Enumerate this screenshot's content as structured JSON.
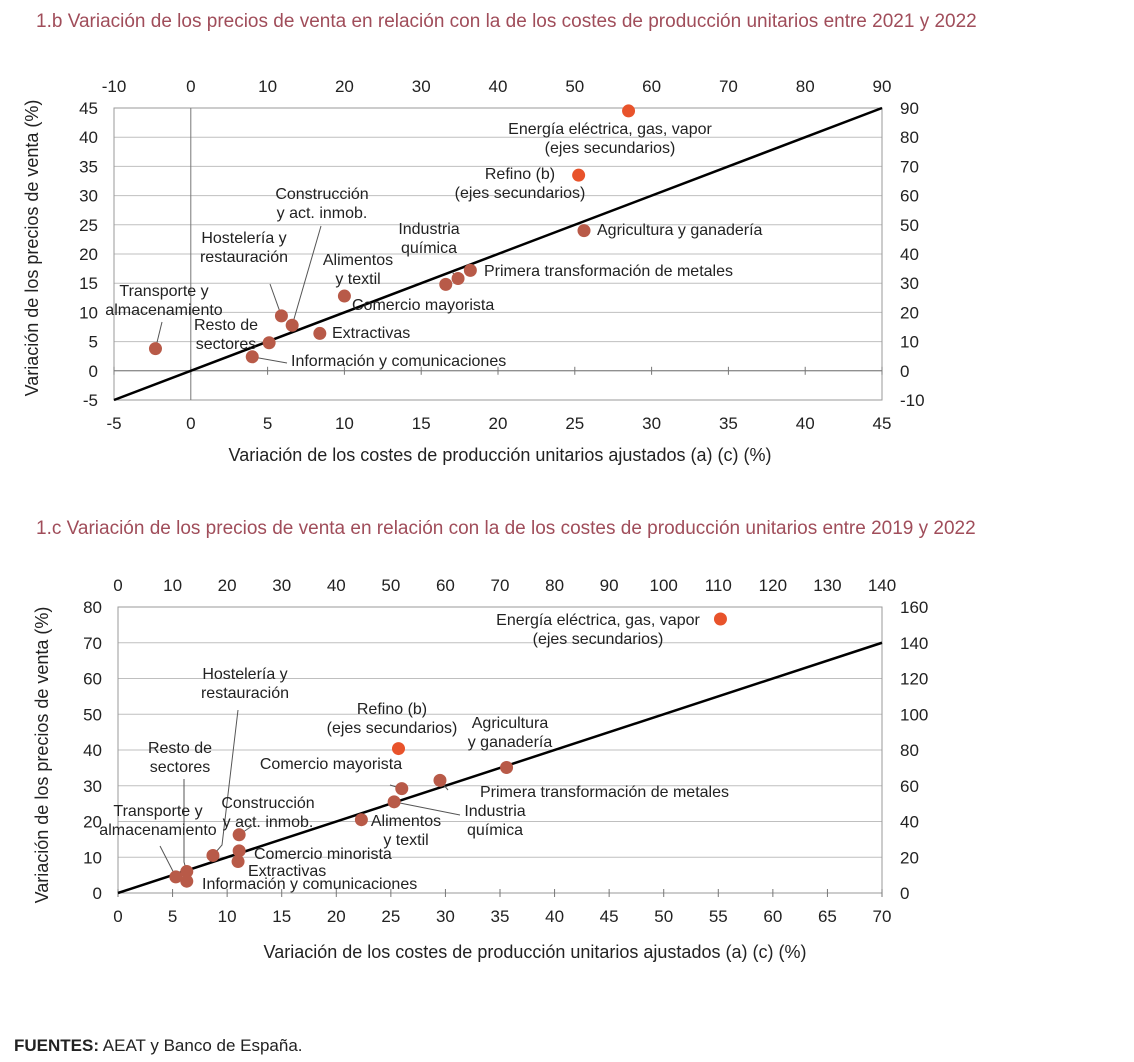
{
  "colors": {
    "title": "#a04d5a",
    "dot": "#b85a48",
    "dot_secondary": "#e8532b",
    "line": "#000000",
    "grid": "#bfbfbf"
  },
  "sources": {
    "label": "FUENTES:",
    "text": "AEAT y Banco de España."
  },
  "chart_data": [
    {
      "id": "1b",
      "type": "scatter",
      "title": "1.b  Variación de los precios de venta en relación con la de los costes de producción unitarios entre 2021 y 2022",
      "xlabel": "Variación de los costes de producción unitarios ajustados (a) (c) (%)",
      "ylabel": "Variación de los precios de venta (%)",
      "xlim": [
        -5,
        45
      ],
      "ylim": [
        -5,
        45
      ],
      "x2lim": [
        -10,
        90
      ],
      "y2lim": [
        -10,
        90
      ],
      "xticks": [
        -5,
        0,
        5,
        10,
        15,
        20,
        25,
        30,
        35,
        40,
        45
      ],
      "yticks": [
        -5,
        0,
        5,
        10,
        15,
        20,
        25,
        30,
        35,
        40,
        45
      ],
      "x2ticks": [
        -10,
        0,
        10,
        20,
        30,
        40,
        50,
        60,
        70,
        80,
        90
      ],
      "y2ticks": [
        -10,
        0,
        10,
        20,
        30,
        40,
        50,
        60,
        70,
        80,
        90
      ],
      "diagonal": true,
      "points": [
        {
          "label": "Energía eléctrica, gas, vapor\n(ejes secundarios)",
          "x": 57,
          "y": 89,
          "secondary": true
        },
        {
          "label": "Refino (b)\n(ejes secundarios)",
          "x": 50.5,
          "y": 67,
          "secondary": true
        },
        {
          "label": "Agricultura  y ganadería",
          "x": 25.6,
          "y": 24
        },
        {
          "label": "Primera transformación de metales",
          "x": 18.2,
          "y": 17.2
        },
        {
          "label": "Industria\nquímica",
          "x": 17.4,
          "y": 15.8
        },
        {
          "label": "Alimentos\ny textil",
          "x": 16.6,
          "y": 14.8
        },
        {
          "label": "Comercio mayorista",
          "x": 10,
          "y": 12.8
        },
        {
          "label": "Construcción\ny act. inmob.",
          "x": 6.6,
          "y": 7.8
        },
        {
          "label": "Hostelería y\nrestauración",
          "x": 5.9,
          "y": 9.4
        },
        {
          "label": "Extractivas",
          "x": 8.4,
          "y": 6.4
        },
        {
          "label": "Resto de\nsectores",
          "x": 5.1,
          "y": 4.8
        },
        {
          "label": "Información y comunicaciones",
          "x": 4.0,
          "y": 2.4
        },
        {
          "label": "Transporte y\nalmacenamiento",
          "x": -2.3,
          "y": 3.8
        }
      ]
    },
    {
      "id": "1c",
      "type": "scatter",
      "title": "1.c  Variación de los precios de venta en relación con la de los costes de producción unitarios entre 2019 y 2022",
      "xlabel": "Variación de los costes de producción unitarios ajustados (a) (c) (%)",
      "ylabel": "Variación de los precios de venta (%)",
      "xlim": [
        0,
        70
      ],
      "ylim": [
        0,
        80
      ],
      "x2lim": [
        0,
        140
      ],
      "y2lim": [
        0,
        160
      ],
      "xticks": [
        0,
        5,
        10,
        15,
        20,
        25,
        30,
        35,
        40,
        45,
        50,
        55,
        60,
        65,
        70
      ],
      "yticks": [
        0,
        10,
        20,
        30,
        40,
        50,
        60,
        70,
        80
      ],
      "x2ticks": [
        0,
        10,
        20,
        30,
        40,
        50,
        60,
        70,
        80,
        90,
        100,
        110,
        120,
        130,
        140
      ],
      "y2ticks": [
        0,
        20,
        40,
        60,
        80,
        100,
        120,
        140,
        160
      ],
      "diagonal": true,
      "points": [
        {
          "label": "Energía eléctrica, gas, vapor\n(ejes secundarios)",
          "x": 110.4,
          "y": 153.3,
          "secondary": true
        },
        {
          "label": "Refino (b)\n(ejes secundarios)",
          "x": 51.4,
          "y": 80.8,
          "secondary": true
        },
        {
          "label": "Agricultura\ny ganadería",
          "x": 35.6,
          "y": 35.1
        },
        {
          "label": "Primera transformación de metales",
          "x": 29.5,
          "y": 31.5
        },
        {
          "label": "Comercio mayorista",
          "x": 26.0,
          "y": 29.2
        },
        {
          "label": "Industria\nquímica",
          "x": 25.3,
          "y": 25.5
        },
        {
          "label": "Alimentos\ny textil",
          "x": 22.3,
          "y": 20.5
        },
        {
          "label": "Construcción\ny act. inmob.",
          "x": 11.1,
          "y": 16.3
        },
        {
          "label": "Comercio minorista",
          "x": 11.1,
          "y": 11.8
        },
        {
          "label": "Hostelería y\nrestauración",
          "x": 8.7,
          "y": 10.5
        },
        {
          "label": "Extractivas",
          "x": 11.0,
          "y": 8.8
        },
        {
          "label": "Resto de\nsectores",
          "x": 6.3,
          "y": 6.0
        },
        {
          "label": "Transporte y\nalmacenamiento",
          "x": 5.3,
          "y": 4.5
        },
        {
          "label": "Información y comunicaciones",
          "x": 6.3,
          "y": 3.3
        }
      ]
    }
  ]
}
